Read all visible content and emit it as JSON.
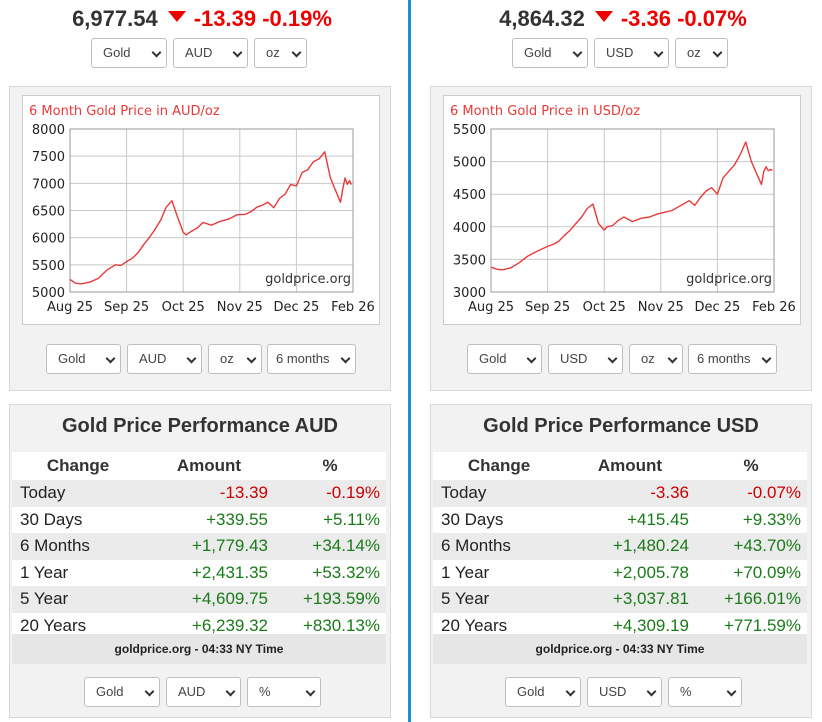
{
  "divider_color": "#1a8fd6",
  "panels": [
    {
      "ticker": {
        "price": "6,977.54",
        "change": "-13.39",
        "percent": "-0.19%",
        "direction": "down"
      },
      "top_selects": [
        "Gold",
        "AUD",
        "oz"
      ],
      "chart_selects": [
        "Gold",
        "AUD",
        "oz",
        "6 months"
      ],
      "bottom_selects": [
        "Gold",
        "AUD",
        "%"
      ],
      "perf_title": "Gold Price Performance AUD",
      "table_headers": [
        "Change",
        "Amount",
        "%"
      ],
      "rows": [
        {
          "label": "Today",
          "amount": "-13.39",
          "pct": "-0.19%"
        },
        {
          "label": "30 Days",
          "amount": "+339.55",
          "pct": "+5.11%"
        },
        {
          "label": "6 Months",
          "amount": "+1,779.43",
          "pct": "+34.14%"
        },
        {
          "label": "1 Year",
          "amount": "+2,431.35",
          "pct": "+53.32%"
        },
        {
          "label": "5 Year",
          "amount": "+4,609.75",
          "pct": "+193.59%"
        },
        {
          "label": "20 Years",
          "amount": "+6,239.32",
          "pct": "+830.13%"
        }
      ],
      "footer": "goldprice.org - 04:33 NY Time"
    },
    {
      "ticker": {
        "price": "4,864.32",
        "change": "-3.36",
        "percent": "-0.07%",
        "direction": "down"
      },
      "top_selects": [
        "Gold",
        "USD",
        "oz"
      ],
      "chart_selects": [
        "Gold",
        "USD",
        "oz",
        "6 months"
      ],
      "bottom_selects": [
        "Gold",
        "USD",
        "%"
      ],
      "perf_title": "Gold Price Performance USD",
      "table_headers": [
        "Change",
        "Amount",
        "%"
      ],
      "rows": [
        {
          "label": "Today",
          "amount": "-3.36",
          "pct": "-0.07%"
        },
        {
          "label": "30 Days",
          "amount": "+415.45",
          "pct": "+9.33%"
        },
        {
          "label": "6 Months",
          "amount": "+1,480.24",
          "pct": "+43.70%"
        },
        {
          "label": "1 Year",
          "amount": "+2,005.78",
          "pct": "+70.09%"
        },
        {
          "label": "5 Year",
          "amount": "+3,037.81",
          "pct": "+166.01%"
        },
        {
          "label": "20 Years",
          "amount": "+4,309.19",
          "pct": "+771.59%"
        }
      ],
      "footer": "goldprice.org - 04:33 NY Time"
    }
  ],
  "chart_data": [
    {
      "type": "line",
      "title": "6 Month Gold Price in AUD/oz",
      "watermark": "goldprice.org",
      "line_color": "#e83a3a",
      "xlabel": "",
      "ylabel": "",
      "ylim": [
        5000,
        8000
      ],
      "yticks": [
        5000,
        5500,
        6000,
        6500,
        7000,
        7500,
        8000
      ],
      "x_tick_labels": [
        "Aug 25",
        "Sep 25",
        "Oct 25",
        "Nov 25",
        "Dec 25",
        "Feb 26"
      ],
      "x_tick_positions": [
        0,
        1,
        2,
        3,
        4,
        5
      ],
      "series": [
        {
          "name": "Gold AUD/oz",
          "x": [
            0,
            0.1,
            0.2,
            0.35,
            0.5,
            0.65,
            0.8,
            0.9,
            1.0,
            1.1,
            1.2,
            1.3,
            1.4,
            1.5,
            1.6,
            1.7,
            1.8,
            1.9,
            2.0,
            2.05,
            2.15,
            2.25,
            2.35,
            2.5,
            2.65,
            2.8,
            2.95,
            3.1,
            3.2,
            3.3,
            3.4,
            3.5,
            3.6,
            3.7,
            3.8,
            3.9,
            4.0,
            4.1,
            4.2,
            4.3,
            4.4,
            4.5,
            4.6,
            4.7,
            4.78,
            4.82,
            4.86,
            4.9,
            4.94,
            4.97
          ],
          "y": [
            5230,
            5160,
            5150,
            5180,
            5250,
            5400,
            5500,
            5490,
            5560,
            5620,
            5720,
            5870,
            6000,
            6150,
            6320,
            6560,
            6680,
            6380,
            6100,
            6050,
            6120,
            6180,
            6280,
            6230,
            6300,
            6340,
            6420,
            6430,
            6480,
            6560,
            6600,
            6650,
            6550,
            6720,
            6800,
            6980,
            6950,
            7200,
            7250,
            7400,
            7450,
            7580,
            7100,
            6850,
            6650,
            6900,
            7100,
            6980,
            7050,
            6977
          ]
        }
      ]
    },
    {
      "type": "line",
      "title": "6 Month Gold Price in USD/oz",
      "watermark": "goldprice.org",
      "line_color": "#e83a3a",
      "xlabel": "",
      "ylabel": "",
      "ylim": [
        3000,
        5500
      ],
      "yticks": [
        3000,
        3500,
        4000,
        4500,
        5000,
        5500
      ],
      "x_tick_labels": [
        "Aug 25",
        "Sep 25",
        "Oct 25",
        "Nov 25",
        "Dec 25",
        "Feb 26"
      ],
      "x_tick_positions": [
        0,
        1,
        2,
        3,
        4,
        5
      ],
      "series": [
        {
          "name": "Gold USD/oz",
          "x": [
            0,
            0.1,
            0.2,
            0.35,
            0.5,
            0.65,
            0.8,
            0.9,
            1.0,
            1.1,
            1.2,
            1.3,
            1.4,
            1.5,
            1.6,
            1.7,
            1.8,
            1.9,
            2.0,
            2.05,
            2.15,
            2.25,
            2.35,
            2.5,
            2.65,
            2.8,
            2.95,
            3.1,
            3.2,
            3.3,
            3.4,
            3.5,
            3.6,
            3.7,
            3.8,
            3.9,
            4.0,
            4.1,
            4.2,
            4.3,
            4.4,
            4.5,
            4.6,
            4.7,
            4.78,
            4.82,
            4.86,
            4.9,
            4.94,
            4.97
          ],
          "y": [
            3380,
            3350,
            3340,
            3370,
            3450,
            3550,
            3620,
            3660,
            3700,
            3730,
            3780,
            3870,
            3950,
            4050,
            4150,
            4280,
            4350,
            4050,
            3950,
            4000,
            4020,
            4100,
            4150,
            4080,
            4130,
            4150,
            4200,
            4230,
            4250,
            4300,
            4350,
            4400,
            4330,
            4450,
            4550,
            4600,
            4500,
            4750,
            4850,
            4950,
            5100,
            5300,
            5000,
            4800,
            4650,
            4850,
            4920,
            4860,
            4880,
            4864
          ]
        }
      ]
    }
  ]
}
